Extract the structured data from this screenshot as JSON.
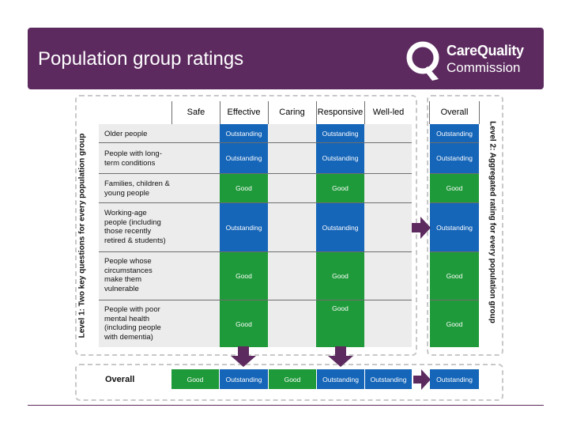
{
  "slide": {
    "title": "Population group ratings",
    "logo_line1": "CareQuality",
    "logo_line2": "Commission",
    "accent_color": "#5c2a5f"
  },
  "diagram": {
    "level1_label": "Level 1: Two key questions for every population group",
    "level2_label": "Level 2: Aggregated rating for every population group",
    "columns": [
      "Safe",
      "Effective",
      "Caring",
      "Responsive",
      "Well-led",
      "Overall"
    ],
    "rows": [
      {
        "label": "Older people",
        "effective": "Outstanding",
        "responsive": "Outstanding",
        "overall": "Outstanding"
      },
      {
        "label": "People with long-term conditions",
        "effective": "Outstanding",
        "responsive": "Outstanding",
        "overall": "Outstanding"
      },
      {
        "label": "Families, children & young people",
        "effective": "Good",
        "responsive": "Good",
        "overall": "Good"
      },
      {
        "label": "Working-age people (including those recently retired & students)",
        "effective": "Outstanding",
        "responsive": "Outstanding",
        "overall": "Outstanding"
      },
      {
        "label": "People whose circumstances make them vulnerable",
        "effective": "Good",
        "responsive": "Good",
        "overall": "Good"
      },
      {
        "label": "People with poor mental health (including people with dementia)",
        "effective": "Good",
        "responsive": "Good",
        "overall": "Good"
      }
    ],
    "overall_row": {
      "label": "Overall",
      "safe": "Good",
      "effective": "Outstanding",
      "caring": "Good",
      "responsive": "Outstanding",
      "well_led": "Outstanding",
      "overall": "Outstanding"
    },
    "colors": {
      "outstanding": "#1565b8",
      "good": "#1f9a3a",
      "arrow": "#5c2a5f"
    }
  }
}
